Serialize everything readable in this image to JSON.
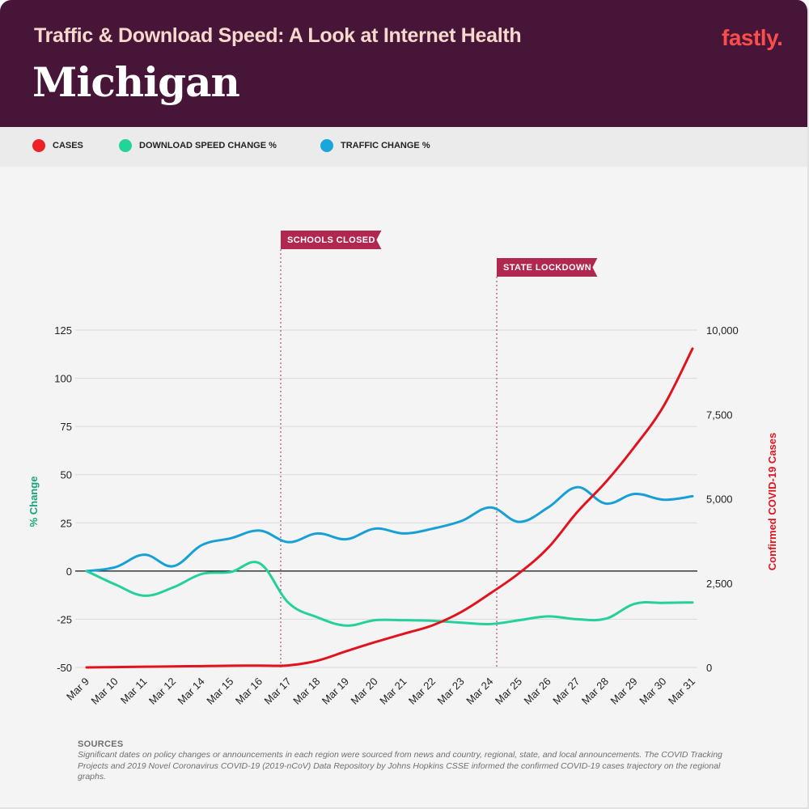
{
  "header": {
    "subtitle": "Traffic & Download Speed: A Look at Internet Health",
    "title": "Michigan",
    "logo": "fastly."
  },
  "legend": [
    {
      "label": "CASES",
      "color": "#ee2028"
    },
    {
      "label": "DOWNLOAD SPEED CHANGE %",
      "color": "#22d39a"
    },
    {
      "label": "TRAFFIC CHANGE %",
      "color": "#18a6dd"
    }
  ],
  "sources": {
    "title": "SOURCES",
    "text": "Significant dates on policy changes or announcements in each region were sourced from news and country, regional, state, and local announcements. The COVID Tracking Projects and 2019 Novel Coronavirus COVID-19 (2019-nCoV) Data Repository by Johns Hopkins CSSE informed the confirmed COVID-19 cases trajectory on the regional graphs."
  },
  "chart_data": {
    "type": "line",
    "title": "Michigan",
    "x": [
      "Mar 9",
      "Mar 10",
      "Mar 11",
      "Mar 12",
      "Mar 14",
      "Mar 15",
      "Mar 16",
      "Mar 17",
      "Mar 18",
      "Mar 19",
      "Mar 20",
      "Mar 21",
      "Mar 22",
      "Mar 23",
      "Mar 24",
      "Mar 25",
      "Mar 26",
      "Mar 27",
      "Mar 28",
      "Mar 29",
      "Mar 30",
      "Mar 31"
    ],
    "ylabel": "% Change",
    "ylabel_color": "#1aa37a",
    "ylim": [
      -50,
      125
    ],
    "yticks": [
      -50,
      -25,
      0,
      25,
      50,
      75,
      100,
      125
    ],
    "ylabel_right": "Confirmed COVID-19 Cases",
    "ylabel_right_color": "#e0141e",
    "ylim_right": [
      0,
      10000
    ],
    "yticks_right": [
      0,
      2500,
      5000,
      7500,
      10000
    ],
    "yticks_right_labels": [
      "0",
      "2,500",
      "5,000",
      "7,500",
      "10,000"
    ],
    "grid": true,
    "legend_position": "top",
    "series": [
      {
        "name": "TRAFFIC CHANGE %",
        "axis": "left",
        "color": "#18a0d6",
        "values": [
          0,
          2,
          8.5,
          2.5,
          13.5,
          17,
          21,
          15,
          19.5,
          16.5,
          22,
          19.5,
          22,
          26,
          33,
          25.5,
          33,
          43.5,
          35,
          40,
          37,
          38.8
        ]
      },
      {
        "name": "DOWNLOAD SPEED CHANGE %",
        "axis": "left",
        "color": "#25d09a",
        "values": [
          0,
          -7,
          -12.8,
          -8.5,
          -1.5,
          -0.5,
          4,
          -16.5,
          -24,
          -28.3,
          -25.5,
          -25.5,
          -25.8,
          -26.8,
          -27.5,
          -25.5,
          -23.5,
          -25,
          -24.7,
          -17,
          -16.5,
          -16.3
        ]
      },
      {
        "name": "CASES",
        "axis": "right",
        "color": "#e0141e",
        "values": [
          0,
          10,
          20,
          30,
          40,
          50,
          55,
          60,
          200,
          480,
          750,
          1000,
          1250,
          1650,
          2200,
          2800,
          3550,
          4600,
          5500,
          6550,
          7750,
          9450
        ]
      }
    ],
    "annotations": [
      {
        "label": "SCHOOLS CLOSED",
        "x": "Mar 17",
        "color": "#b0274f"
      },
      {
        "label": "STATE LOCKDOWN",
        "x": "Mar 24",
        "color": "#b0274f"
      }
    ]
  }
}
